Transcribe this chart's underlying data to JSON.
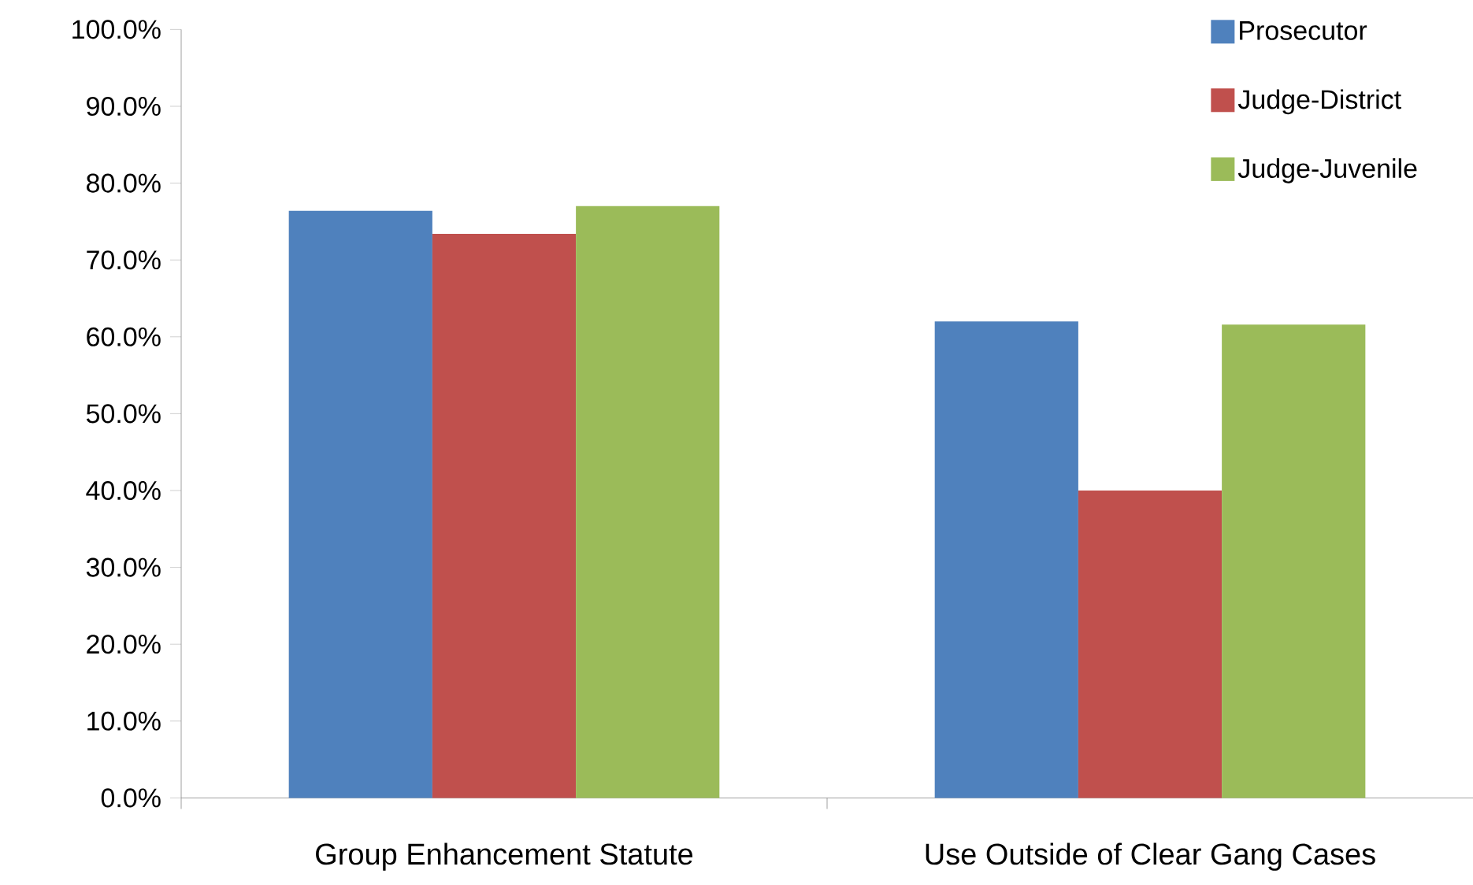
{
  "chart_data": {
    "type": "bar",
    "categories": [
      "Group Enhancement Statute",
      "Use Outside of Clear Gang Cases"
    ],
    "series": [
      {
        "name": "Prosecutor",
        "color": "#4f81bd",
        "values": [
          76.4,
          62.0
        ]
      },
      {
        "name": "Judge-District",
        "color": "#c0504d",
        "values": [
          73.4,
          40.0
        ]
      },
      {
        "name": "Judge-Juvenile",
        "color": "#9bbb59",
        "values": [
          77.0,
          61.6
        ]
      }
    ],
    "ylim": [
      0,
      100
    ],
    "yticks": [
      {
        "value": 0,
        "label": "0.0%"
      },
      {
        "value": 10,
        "label": "10.0%"
      },
      {
        "value": 20,
        "label": "20.0%"
      },
      {
        "value": 30,
        "label": "30.0%"
      },
      {
        "value": 40,
        "label": "40.0%"
      },
      {
        "value": 50,
        "label": "50.0%"
      },
      {
        "value": 60,
        "label": "60.0%"
      },
      {
        "value": 70,
        "label": "70.0%"
      },
      {
        "value": 80,
        "label": "80.0%"
      },
      {
        "value": 90,
        "label": "90.0%"
      },
      {
        "value": 100,
        "label": "100.0%"
      }
    ],
    "legend": "top right"
  }
}
